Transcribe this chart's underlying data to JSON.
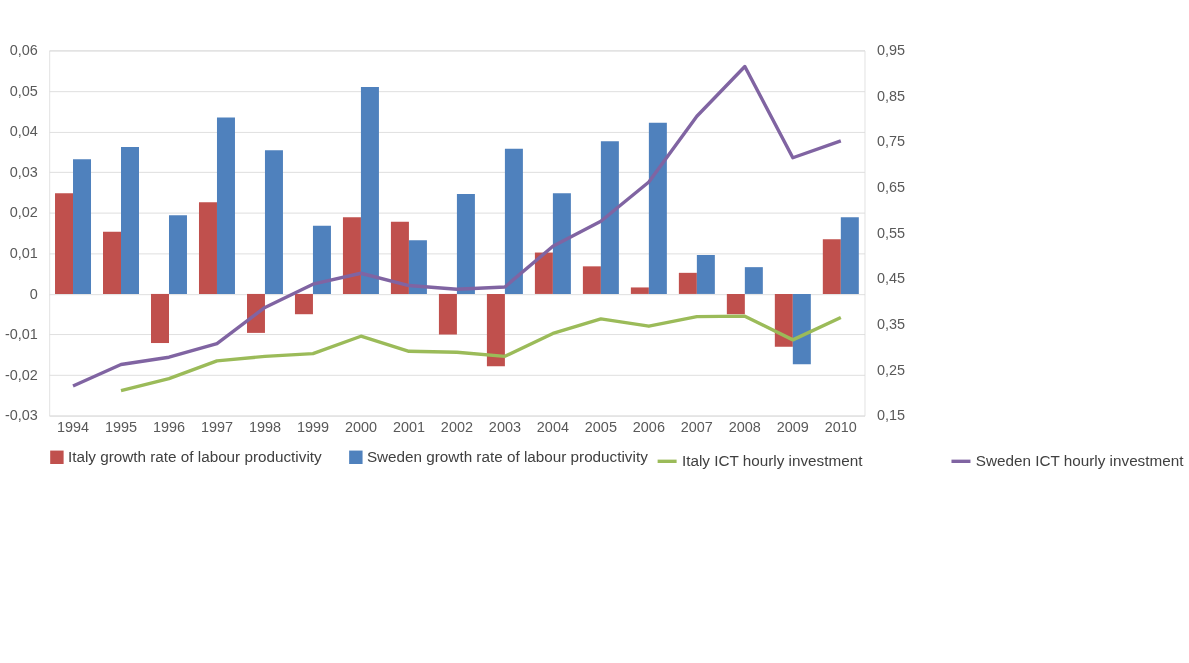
{
  "chart_data": {
    "type": "bar",
    "categories": [
      "1994",
      "1995",
      "1996",
      "1997",
      "1998",
      "1999",
      "2000",
      "2001",
      "2002",
      "2003",
      "2004",
      "2005",
      "2006",
      "2007",
      "2008",
      "2009",
      "2010"
    ],
    "series": [
      {
        "name": "Italy growth rate of labour productivity",
        "color": "#c0504d",
        "values": [
          0.0248,
          0.0153,
          -0.0121,
          0.0226,
          -0.0096,
          -0.005,
          0.0189,
          0.0178,
          -0.01,
          -0.0178,
          0.0102,
          0.0068,
          0.0016,
          0.0052,
          -0.005,
          -0.013,
          0.0135
        ]
      },
      {
        "name": "Sweden growth rate of labour productivity",
        "color": "#4f81bd",
        "values": [
          0.0332,
          0.0362,
          0.0194,
          0.0435,
          0.0354,
          0.0168,
          0.051,
          0.0132,
          0.0246,
          0.0358,
          0.0248,
          0.0376,
          0.0422,
          0.0096,
          0.0066,
          -0.0173,
          0.0189
        ]
      },
      {
        "name": "Italy ICT hourly investment",
        "type": "line",
        "axis": "y2",
        "color": "#9bbb59",
        "values": [
          null,
          0.205,
          0.231,
          0.27,
          0.28,
          0.286,
          0.324,
          0.291,
          0.289,
          0.28,
          0.33,
          0.362,
          0.346,
          0.367,
          0.368,
          0.316,
          0.365
        ]
      },
      {
        "name": "Sweden ICT hourly investment",
        "type": "line",
        "axis": "y2",
        "color": "#8064a2",
        "values": [
          0.215,
          0.262,
          0.278,
          0.308,
          0.387,
          0.438,
          0.462,
          0.435,
          0.427,
          0.432,
          0.521,
          0.576,
          0.662,
          0.806,
          0.915,
          0.715,
          0.752
        ]
      }
    ],
    "ylim": [
      -0.03,
      0.06
    ],
    "yticks": [
      {
        "value": -0.03,
        "label": "-0,03"
      },
      {
        "value": -0.02,
        "label": "-0,02"
      },
      {
        "value": -0.01,
        "label": "-0,01"
      },
      {
        "value": 0,
        "label": "0"
      },
      {
        "value": 0.01,
        "label": "0,01"
      },
      {
        "value": 0.02,
        "label": "0,02"
      },
      {
        "value": 0.03,
        "label": "0,03"
      },
      {
        "value": 0.04,
        "label": "0,04"
      },
      {
        "value": 0.05,
        "label": "0,05"
      },
      {
        "value": 0.06,
        "label": "0,06"
      }
    ],
    "y2lim": [
      0.15,
      0.95
    ],
    "y2ticks": [
      {
        "value": 0.15,
        "label": "0,15"
      },
      {
        "value": 0.25,
        "label": "0,25"
      },
      {
        "value": 0.35,
        "label": "0,35"
      },
      {
        "value": 0.45,
        "label": "0,45"
      },
      {
        "value": 0.55,
        "label": "0,55"
      },
      {
        "value": 0.65,
        "label": "0,65"
      },
      {
        "value": 0.75,
        "label": "0,75"
      },
      {
        "value": 0.85,
        "label": "0,85"
      },
      {
        "value": 0.95,
        "label": "0,95"
      }
    ],
    "grid": "y",
    "legend": "bottom"
  }
}
